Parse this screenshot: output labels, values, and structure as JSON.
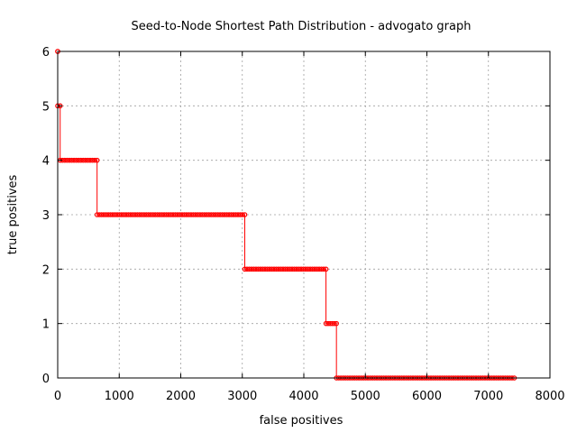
{
  "chart_data": {
    "type": "line",
    "title": "Seed-to-Node Shortest Path Distribution - advogato graph",
    "xlabel": "false positives",
    "ylabel": "true positives",
    "xlim": [
      0,
      8000
    ],
    "ylim": [
      0,
      6
    ],
    "xticks": [
      0,
      1000,
      2000,
      3000,
      4000,
      5000,
      6000,
      7000,
      8000
    ],
    "yticks": [
      0,
      1,
      2,
      3,
      4,
      5,
      6
    ],
    "grid": true,
    "color": "#ff0000",
    "series": [
      {
        "style": "step-with-points",
        "segments": [
          {
            "y": 6,
            "x_start": 0,
            "x_end": 0
          },
          {
            "y": 5,
            "x_start": 0,
            "x_end": 40
          },
          {
            "y": 4,
            "x_start": 40,
            "x_end": 640
          },
          {
            "y": 3,
            "x_start": 640,
            "x_end": 3040
          },
          {
            "y": 2,
            "x_start": 3040,
            "x_end": 4360
          },
          {
            "y": 1,
            "x_start": 4360,
            "x_end": 4530
          },
          {
            "y": 0,
            "x_start": 4530,
            "x_end": 7420
          }
        ]
      }
    ]
  }
}
